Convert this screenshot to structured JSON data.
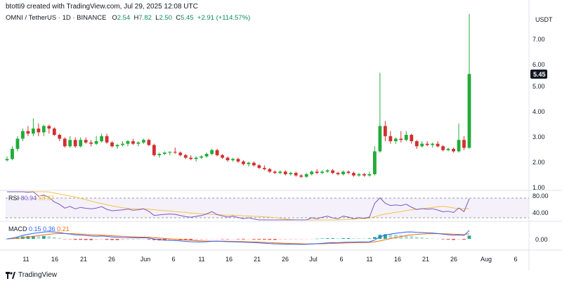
{
  "header": {
    "created_by": "btotti9 created with TradingView.com, Jul 29, 2025 12:08 UTC"
  },
  "symbol": {
    "name": "OMNI / TetherUS · 1D · BINANCE",
    "open_label": "O",
    "open": "2.54",
    "high_label": "H",
    "high": "7.82",
    "low_label": "L",
    "low": "2.50",
    "close_label": "C",
    "close": "5.45",
    "change": "+2.91 (+114.57%)"
  },
  "price_axis": {
    "currency": "USDT",
    "ticks": [
      "7.00",
      "6.00",
      "5.00",
      "4.00",
      "3.00",
      "2.00",
      "1.00"
    ],
    "last_price": "5.45"
  },
  "rsi": {
    "name": "RSI",
    "value": "80.94",
    "ma_value": "58.87",
    "ticks": [
      "80.00",
      "40.00"
    ]
  },
  "macd": {
    "name": "MACD",
    "hist": "0.15",
    "macd_value": "0.36",
    "signal": "0.21",
    "ticks": [
      "0.00"
    ]
  },
  "time_axis": {
    "labels": [
      "11",
      "16",
      "21",
      "26",
      "Jun",
      "6",
      "11",
      "16",
      "21",
      "26",
      "Jul",
      "6",
      "11",
      "16",
      "21",
      "26",
      "Aug",
      "6"
    ]
  },
  "footer": {
    "brand": "TradingView"
  },
  "colors": {
    "up": "#26a69a",
    "down": "#ef5350",
    "candle_up": "#22ab38",
    "candle_down": "#d32f2f",
    "rsi_line": "#7e57c2",
    "rsi_ma": "#f6c343",
    "macd_line": "#2962ff",
    "signal_line": "#ff6d00",
    "last_price_bg": "#131722"
  },
  "chart_data": {
    "type": "candlestick",
    "title": "OMNI / TetherUS · 1D · BINANCE",
    "ylabel": "USDT",
    "ylim": [
      1,
      8
    ],
    "x_labels": [
      "11",
      "16",
      "21",
      "26",
      "Jun",
      "6",
      "11",
      "16",
      "21",
      "26",
      "Jul",
      "6",
      "11",
      "16",
      "21",
      "26",
      "Aug",
      "6"
    ],
    "candles": [
      [
        2.05,
        2.2,
        2.0,
        2.1
      ],
      [
        2.1,
        2.6,
        2.05,
        2.5
      ],
      [
        2.5,
        3.0,
        2.4,
        2.9
      ],
      [
        2.9,
        3.3,
        2.8,
        3.2
      ],
      [
        3.2,
        3.4,
        3.0,
        3.1
      ],
      [
        3.1,
        3.7,
        3.0,
        3.3
      ],
      [
        3.3,
        3.5,
        3.0,
        3.15
      ],
      [
        3.15,
        3.45,
        3.0,
        3.4
      ],
      [
        3.4,
        3.45,
        3.1,
        3.3
      ],
      [
        3.3,
        3.35,
        3.0,
        3.05
      ],
      [
        3.05,
        3.1,
        2.8,
        2.9
      ],
      [
        2.9,
        2.95,
        2.55,
        2.6
      ],
      [
        2.6,
        3.0,
        2.55,
        2.85
      ],
      [
        2.85,
        2.95,
        2.55,
        2.6
      ],
      [
        2.6,
        2.95,
        2.55,
        2.85
      ],
      [
        2.85,
        2.95,
        2.7,
        2.75
      ],
      [
        2.75,
        2.85,
        2.6,
        2.7
      ],
      [
        2.7,
        3.0,
        2.65,
        2.8
      ],
      [
        2.8,
        3.1,
        2.75,
        3.0
      ],
      [
        3.0,
        3.1,
        2.7,
        2.75
      ],
      [
        2.75,
        2.8,
        2.55,
        2.6
      ],
      [
        2.6,
        2.7,
        2.5,
        2.65
      ],
      [
        2.65,
        2.8,
        2.6,
        2.7
      ],
      [
        2.7,
        2.85,
        2.6,
        2.8
      ],
      [
        2.8,
        2.9,
        2.65,
        2.7
      ],
      [
        2.7,
        2.8,
        2.6,
        2.75
      ],
      [
        2.75,
        2.9,
        2.7,
        2.85
      ],
      [
        2.85,
        2.9,
        2.6,
        2.65
      ],
      [
        2.65,
        2.7,
        2.2,
        2.25
      ],
      [
        2.25,
        2.35,
        2.15,
        2.3
      ],
      [
        2.3,
        2.4,
        2.25,
        2.35
      ],
      [
        2.35,
        2.4,
        2.25,
        2.38
      ],
      [
        2.38,
        2.55,
        2.3,
        2.35
      ],
      [
        2.35,
        2.4,
        2.2,
        2.25
      ],
      [
        2.25,
        2.3,
        2.1,
        2.15
      ],
      [
        2.15,
        2.25,
        2.05,
        2.1
      ],
      [
        2.1,
        2.2,
        2.0,
        2.15
      ],
      [
        2.15,
        2.25,
        2.1,
        2.2
      ],
      [
        2.2,
        2.35,
        2.15,
        2.3
      ],
      [
        2.3,
        2.5,
        2.25,
        2.45
      ],
      [
        2.45,
        2.5,
        2.2,
        2.25
      ],
      [
        2.25,
        2.3,
        2.1,
        2.15
      ],
      [
        2.15,
        2.2,
        2.0,
        2.05
      ],
      [
        2.05,
        2.15,
        2.0,
        2.1
      ],
      [
        2.1,
        2.15,
        1.95,
        2.0
      ],
      [
        2.0,
        2.05,
        1.85,
        1.9
      ],
      [
        1.9,
        2.0,
        1.8,
        1.95
      ],
      [
        1.95,
        2.0,
        1.8,
        1.85
      ],
      [
        1.85,
        1.9,
        1.7,
        1.75
      ],
      [
        1.75,
        1.85,
        1.65,
        1.7
      ],
      [
        1.7,
        1.75,
        1.55,
        1.6
      ],
      [
        1.6,
        1.65,
        1.5,
        1.55
      ],
      [
        1.55,
        1.65,
        1.5,
        1.6
      ],
      [
        1.6,
        1.65,
        1.45,
        1.5
      ],
      [
        1.5,
        1.6,
        1.45,
        1.55
      ],
      [
        1.55,
        1.6,
        1.4,
        1.45
      ],
      [
        1.45,
        1.5,
        1.35,
        1.4
      ],
      [
        1.4,
        1.55,
        1.35,
        1.5
      ],
      [
        1.5,
        1.65,
        1.45,
        1.6
      ],
      [
        1.6,
        1.7,
        1.5,
        1.55
      ],
      [
        1.55,
        1.65,
        1.5,
        1.6
      ],
      [
        1.6,
        1.7,
        1.55,
        1.65
      ],
      [
        1.65,
        1.7,
        1.5,
        1.55
      ],
      [
        1.55,
        1.6,
        1.45,
        1.5
      ],
      [
        1.5,
        1.65,
        1.45,
        1.6
      ],
      [
        1.6,
        1.65,
        1.5,
        1.55
      ],
      [
        1.55,
        1.6,
        1.4,
        1.45
      ],
      [
        1.45,
        1.55,
        1.4,
        1.5
      ],
      [
        1.5,
        1.55,
        1.4,
        1.45
      ],
      [
        1.45,
        1.6,
        1.4,
        1.5
      ],
      [
        1.5,
        2.6,
        1.45,
        2.4
      ],
      [
        2.4,
        5.5,
        2.35,
        3.4
      ],
      [
        3.4,
        3.6,
        2.8,
        3.0
      ],
      [
        3.0,
        3.2,
        2.7,
        2.8
      ],
      [
        2.8,
        2.95,
        2.7,
        2.9
      ],
      [
        2.9,
        3.2,
        2.75,
        2.85
      ],
      [
        2.85,
        3.2,
        2.8,
        3.05
      ],
      [
        3.05,
        3.1,
        2.7,
        2.8
      ],
      [
        2.8,
        2.85,
        2.5,
        2.6
      ],
      [
        2.6,
        2.8,
        2.55,
        2.7
      ],
      [
        2.7,
        2.8,
        2.6,
        2.65
      ],
      [
        2.65,
        2.75,
        2.55,
        2.7
      ],
      [
        2.7,
        2.8,
        2.55,
        2.6
      ],
      [
        2.6,
        2.65,
        2.4,
        2.45
      ],
      [
        2.45,
        2.55,
        2.4,
        2.5
      ],
      [
        2.5,
        2.55,
        2.35,
        2.4
      ],
      [
        2.4,
        3.5,
        2.35,
        2.85
      ],
      [
        2.85,
        3.0,
        2.45,
        2.54
      ],
      [
        2.54,
        7.82,
        2.5,
        5.45
      ]
    ]
  }
}
